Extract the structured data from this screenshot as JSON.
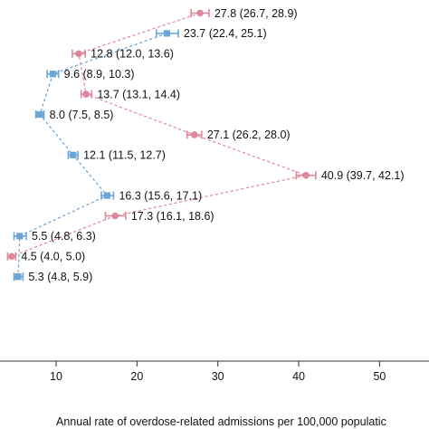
{
  "colors": {
    "pink": "#e0869b",
    "blue": "#6aa5d8",
    "axis": "#333333"
  },
  "chart_data": {
    "type": "scatter",
    "xlabel": "Annual rate of overdose-related admissions per 100,000 populatic",
    "xlim": [
      3.5,
      51
    ],
    "x_ticks": [
      10,
      20,
      30,
      40,
      50
    ],
    "grid": false,
    "series": [
      {
        "color": "pink",
        "points": [
          {
            "y_index": 0,
            "value": 27.8,
            "low": 26.7,
            "high": 28.9,
            "label": "27.8 (26.7, 28.9)"
          },
          {
            "y_index": 2,
            "value": 12.8,
            "low": 12.0,
            "high": 13.6,
            "label": "12.8 (12.0, 13.6)"
          },
          {
            "y_index": 4,
            "value": 13.7,
            "low": 13.1,
            "high": 14.4,
            "label": "13.7 (13.1, 14.4)"
          },
          {
            "y_index": 6,
            "value": 27.1,
            "low": 26.2,
            "high": 28.0,
            "label": "27.1 (26.2, 28.0)"
          },
          {
            "y_index": 8,
            "value": 40.9,
            "low": 39.7,
            "high": 42.1,
            "label": "40.9 (39.7, 42.1)"
          },
          {
            "y_index": 10,
            "value": 17.3,
            "low": 16.1,
            "high": 18.6,
            "label": "17.3 (16.1, 18.6)"
          },
          {
            "y_index": 12,
            "value": 4.5,
            "low": 4.0,
            "high": 5.0,
            "label": "4.5 (4.0, 5.0)"
          }
        ]
      },
      {
        "color": "blue",
        "points": [
          {
            "y_index": 1,
            "value": 23.7,
            "low": 22.4,
            "high": 25.1,
            "label": "23.7 (22.4, 25.1)"
          },
          {
            "y_index": 3,
            "value": 9.6,
            "low": 8.9,
            "high": 10.3,
            "label": "9.6 (8.9, 10.3)"
          },
          {
            "y_index": 5,
            "value": 8.0,
            "low": 7.5,
            "high": 8.5,
            "label": "8.0 (7.5, 8.5)"
          },
          {
            "y_index": 7,
            "value": 12.1,
            "low": 11.5,
            "high": 12.7,
            "label": "12.1 (11.5, 12.7)"
          },
          {
            "y_index": 9,
            "value": 16.3,
            "low": 15.6,
            "high": 17.1,
            "label": "16.3 (15.6, 17.1)"
          },
          {
            "y_index": 11,
            "value": 5.5,
            "low": 4.8,
            "high": 6.3,
            "label": "5.5 (4.8, 6.3)"
          },
          {
            "y_index": 13,
            "value": 5.3,
            "low": 4.8,
            "high": 5.9,
            "label": "5.3 (4.8, 5.9)"
          }
        ]
      }
    ]
  }
}
